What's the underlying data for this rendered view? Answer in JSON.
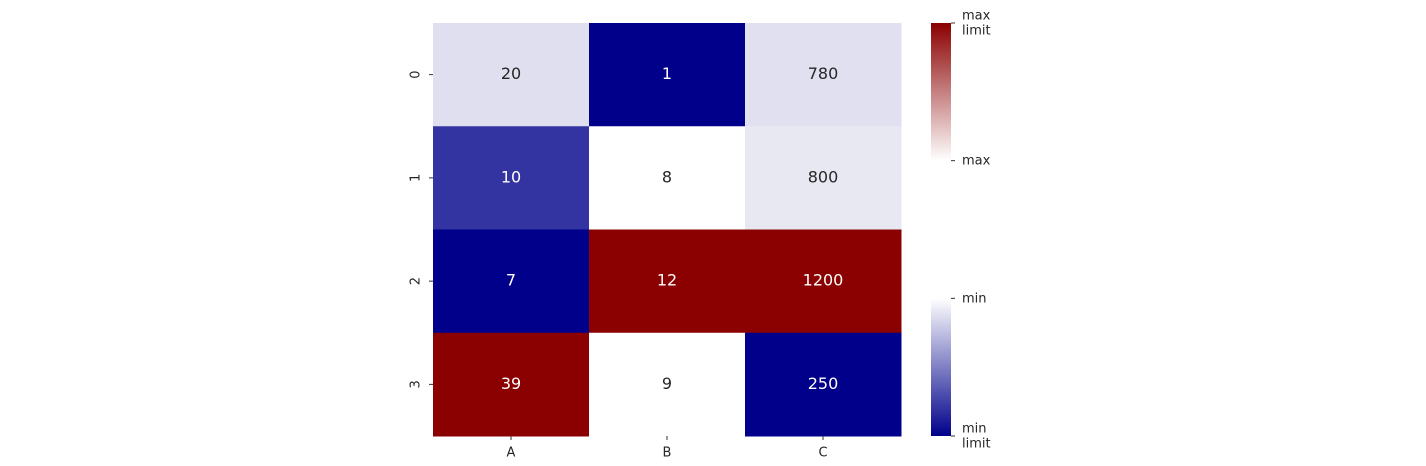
{
  "chart_data": {
    "type": "heatmap",
    "x_categories": [
      "A",
      "B",
      "C"
    ],
    "y_categories": [
      "0",
      "1",
      "2",
      "3"
    ],
    "values": [
      [
        20,
        1,
        780
      ],
      [
        10,
        8,
        800
      ],
      [
        7,
        12,
        1200
      ],
      [
        39,
        9,
        250
      ]
    ],
    "colors": [
      [
        "#dfdfef",
        "#00008b",
        "#e0e0f0"
      ],
      [
        "#3333a2",
        "#ffffff",
        "#e8e8f3"
      ],
      [
        "#00008b",
        "#8b0000",
        "#8b0000"
      ],
      [
        "#8b0000",
        "#ffffff",
        "#00008b"
      ]
    ],
    "colorbar": {
      "labels": [
        "min limit",
        "min",
        "max",
        "max limit"
      ],
      "colors": [
        "#00008b",
        "#ffffff",
        "#ffffff",
        "#8b0000"
      ]
    }
  }
}
